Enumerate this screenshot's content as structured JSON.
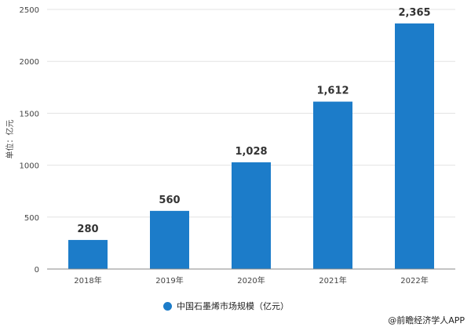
{
  "chart_data": {
    "type": "bar",
    "categories": [
      "2018年",
      "2019年",
      "2020年",
      "2021年",
      "2022年"
    ],
    "values": [
      280,
      560,
      1028,
      1612,
      2365
    ],
    "data_labels": [
      "280",
      "560",
      "1,028",
      "1,612",
      "2,365"
    ],
    "ylabel": "单位：亿元",
    "ylim": [
      0,
      2500
    ],
    "yticks": [
      "0",
      "500",
      "1000",
      "1500",
      "2000",
      "2500"
    ],
    "grid": true,
    "legend": "bottom",
    "series": [
      {
        "name": "中国石墨烯市场规模（亿元）",
        "values": [
          280,
          560,
          1028,
          1612,
          2365
        ]
      }
    ],
    "color": "#1c7cc9"
  },
  "footer": {
    "source": "@前瞻经济学人APP"
  }
}
